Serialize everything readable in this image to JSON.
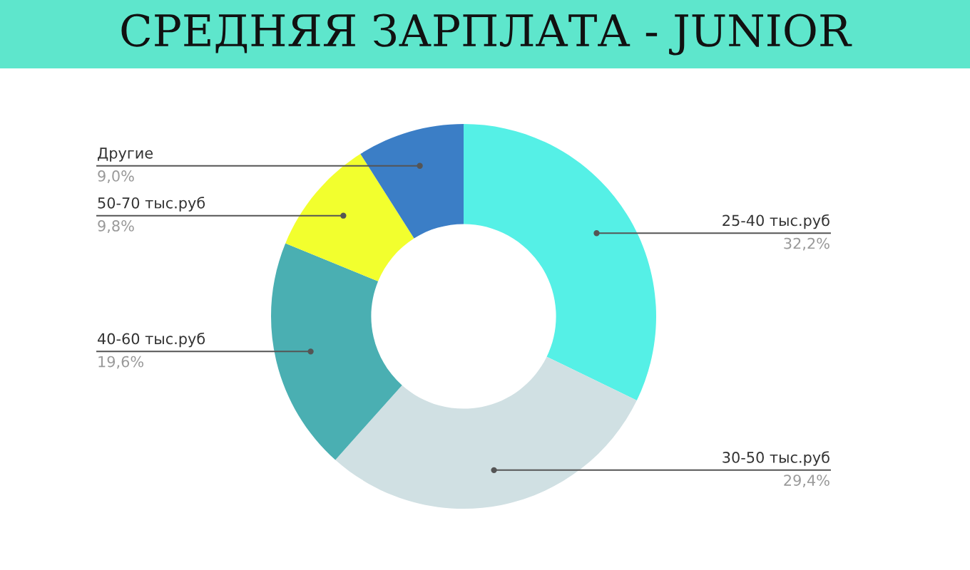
{
  "chart_data": {
    "type": "donut",
    "title": "СРЕДНЯЯ ЗАРПЛАТА - JUNIOR",
    "categories": [
      "25-40 тыс.руб",
      "30-50 тыс.руб",
      "40-60 тыс.руб",
      "50-70 тыс.руб",
      "Другие"
    ],
    "values": [
      32.2,
      29.4,
      19.6,
      9.8,
      9.0
    ],
    "value_labels": [
      "32,2%",
      "29,4%",
      "19,6%",
      "9,8%",
      "9,0%"
    ],
    "colors": [
      "#55f0e6",
      "#d0e0e3",
      "#4aafb2",
      "#f2ff2e",
      "#3b7ec6"
    ]
  }
}
